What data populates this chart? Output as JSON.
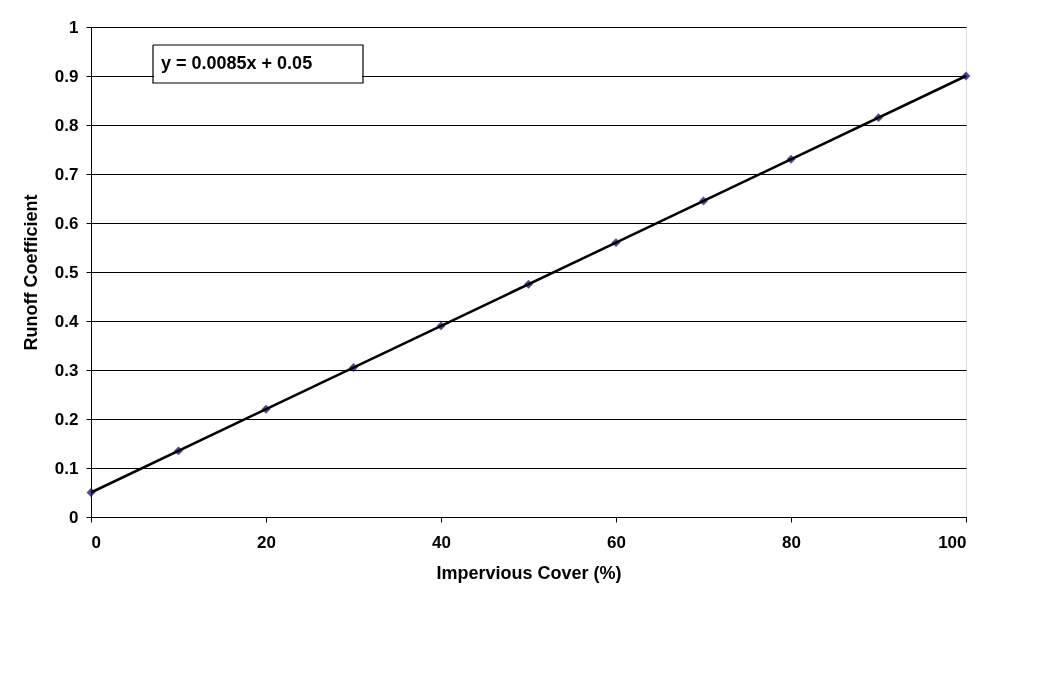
{
  "chart_data": {
    "type": "scatter",
    "xlabel": "Impervious Cover (%)",
    "ylabel": "Runoff Coefficient",
    "x": [
      0,
      10,
      20,
      30,
      40,
      50,
      60,
      70,
      80,
      90,
      100
    ],
    "series": [
      {
        "color": "#000080",
        "marker": "diamond",
        "values": [
          0.05,
          0.135,
          0.22,
          0.305,
          0.39,
          0.475,
          0.56,
          0.645,
          0.73,
          0.815,
          0.9
        ]
      },
      {
        "type": "line",
        "color": "#000000",
        "marker": "none",
        "line_style": "solid",
        "x": [
          0,
          100
        ],
        "values": [
          0.05,
          0.9
        ]
      }
    ],
    "annotations": [
      "y = 0.0085x + 0.05"
    ],
    "xlim": [
      0,
      100
    ],
    "xticks": [
      0,
      20,
      40,
      60,
      80,
      100
    ],
    "ylim": [
      0,
      1
    ],
    "yticks": [
      0,
      0.1,
      0.2,
      0.3,
      0.4,
      0.5,
      0.6,
      0.7,
      0.8,
      0.9,
      1
    ],
    "grid": "y"
  }
}
